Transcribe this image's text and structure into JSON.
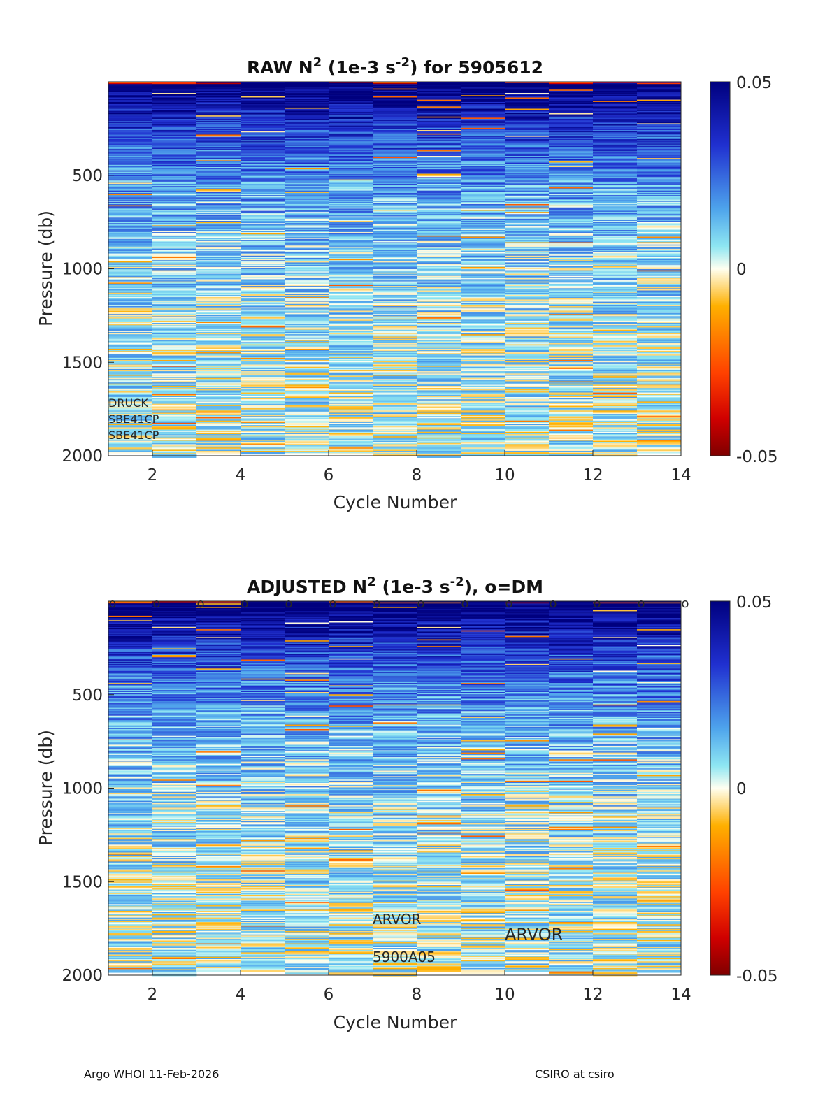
{
  "chart_data": [
    {
      "type": "heatmap",
      "title_main": "RAW N",
      "title_sup1": "2",
      "title_mid": " (1e-3 s",
      "title_sup2": "-2",
      "title_end": ") for 5905612",
      "xlabel": "Cycle Number",
      "ylabel": "Pressure (db)",
      "xlim": [
        1,
        14
      ],
      "ylim": [
        0,
        2000
      ],
      "xticks": [
        "2",
        "4",
        "6",
        "8",
        "10",
        "12",
        "14"
      ],
      "yticks": [
        "500",
        "1000",
        "1500",
        "2000"
      ],
      "cycles": [
        1,
        2,
        3,
        4,
        5,
        6,
        7,
        8,
        9,
        10,
        11,
        12,
        13
      ],
      "colorbar": {
        "min": -0.05,
        "max": 0.05,
        "ticks": [
          "0.05",
          "0",
          "-0.05"
        ]
      },
      "annotations": [
        "DRUCK",
        "SBE41CP",
        "SBE41CP"
      ],
      "dm_markers": false
    },
    {
      "type": "heatmap",
      "title_main": "ADJUSTED N",
      "title_sup1": "2",
      "title_mid": " (1e-3 s",
      "title_sup2": "-2",
      "title_end": "), o=DM",
      "xlabel": "Cycle Number",
      "ylabel": "Pressure (db)",
      "xlim": [
        1,
        14
      ],
      "ylim": [
        0,
        2000
      ],
      "xticks": [
        "2",
        "4",
        "6",
        "8",
        "10",
        "12",
        "14"
      ],
      "yticks": [
        "500",
        "1000",
        "1500",
        "2000"
      ],
      "cycles": [
        1,
        2,
        3,
        4,
        5,
        6,
        7,
        8,
        9,
        10,
        11,
        12,
        13
      ],
      "colorbar": {
        "min": -0.05,
        "max": 0.05,
        "ticks": [
          "0.05",
          "0",
          "-0.05"
        ]
      },
      "annotations": [
        "ARVOR",
        "ARVOR",
        "5900A05"
      ],
      "dm_markers": true,
      "dm_marker_symbol": "o"
    }
  ],
  "footer": {
    "left": "Argo WHOI 11-Feb-2026",
    "right": "CSIRO at csiro"
  }
}
